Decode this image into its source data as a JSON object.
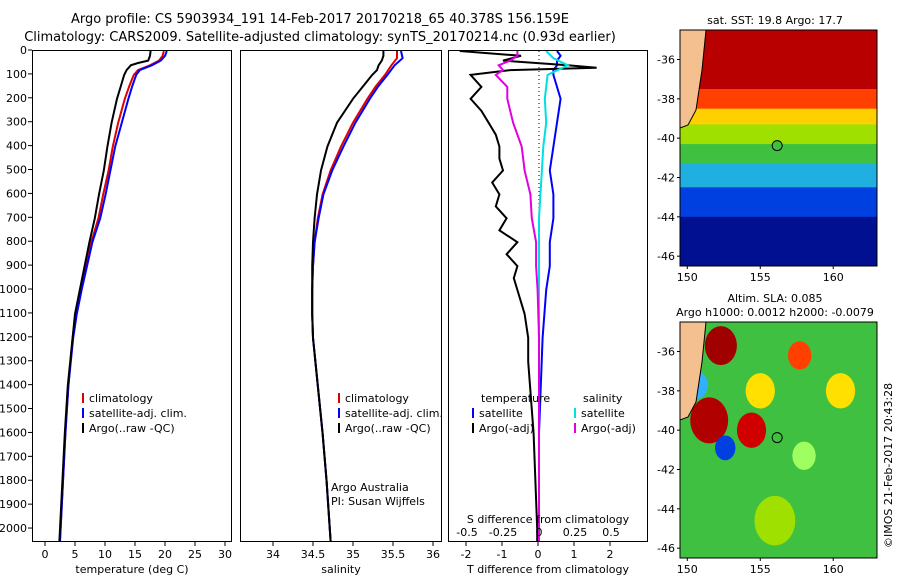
{
  "header": {
    "line1": "Argo profile: CS 5903934_191 14-Feb-2017 20170218_65 40.378S 156.159E",
    "line2": "Climatology: CARS2009. Satellite-adjusted climatology: synTS_20170214.nc (0.93d earlier)"
  },
  "map_top": {
    "title": "sat. SST: 19.8 Argo: 17.7"
  },
  "map_bottom": {
    "title1": "Altim. SLA: 0.085",
    "title2": "Argo h1000: 0.0012 h2000: -0.0079"
  },
  "credit": "©IMOS 21-Feb-2017 20:43:28",
  "colors": {
    "climatology": "#e00000",
    "satellite": "#0000ff",
    "argo": "#000000",
    "sal_satellite": "#00e0e0",
    "sal_argo": "#e000e0"
  },
  "chart_data": [
    {
      "type": "line",
      "xlabel": "temperature (deg C)",
      "ylabel": "",
      "xlim": [
        -2,
        31
      ],
      "ylim": [
        2050,
        0
      ],
      "xticks": [
        0,
        5,
        10,
        15,
        20,
        25,
        30
      ],
      "yticks": [
        0,
        100,
        200,
        300,
        400,
        500,
        600,
        700,
        800,
        900,
        1000,
        1100,
        1200,
        1300,
        1400,
        1500,
        1600,
        1700,
        1800,
        1900,
        2000
      ],
      "legend": [
        "climatology",
        "satellite-adj. clim.",
        "Argo(..raw -QC)"
      ],
      "legend_position": "bottom-right",
      "series": [
        {
          "name": "climatology",
          "color": "#e00000",
          "depth": [
            0,
            20,
            40,
            60,
            80,
            100,
            150,
            200,
            300,
            400,
            500,
            600,
            700,
            800,
            900,
            1000,
            1100,
            1200,
            1400,
            1600,
            1800,
            2000,
            2050
          ],
          "values": [
            19.8,
            19.6,
            19.0,
            17.5,
            15.5,
            14.8,
            14.0,
            13.3,
            12.2,
            11.3,
            10.6,
            9.7,
            8.9,
            7.7,
            6.8,
            6.0,
            5.2,
            4.6,
            3.9,
            3.4,
            3.0,
            2.6,
            2.5
          ]
        },
        {
          "name": "satellite-adj. clim.",
          "color": "#0000ff",
          "depth": [
            0,
            20,
            40,
            60,
            80,
            100,
            150,
            200,
            300,
            400,
            500,
            600,
            700,
            800,
            900,
            1000,
            1100,
            1200,
            1400,
            1600,
            1800,
            2000,
            2050
          ],
          "values": [
            20.3,
            20.0,
            19.3,
            17.8,
            15.8,
            15.2,
            14.5,
            13.9,
            12.8,
            11.7,
            10.9,
            10.1,
            9.2,
            7.9,
            7.0,
            6.1,
            5.3,
            4.7,
            3.9,
            3.4,
            3.0,
            2.6,
            2.5
          ]
        },
        {
          "name": "Argo(..raw -QC)",
          "color": "#000000",
          "depth": [
            0,
            20,
            40,
            50,
            60,
            80,
            100,
            150,
            200,
            300,
            400,
            500,
            600,
            700,
            800,
            900,
            1000,
            1100,
            1200,
            1400,
            1600,
            1800,
            2000,
            2050
          ],
          "values": [
            17.6,
            17.5,
            17.2,
            15.5,
            14.3,
            13.6,
            13.2,
            12.6,
            12.0,
            11.1,
            10.4,
            9.8,
            9.0,
            8.3,
            7.4,
            6.6,
            5.8,
            5.0,
            4.6,
            3.8,
            3.3,
            2.9,
            2.5,
            2.4
          ]
        }
      ]
    },
    {
      "type": "line",
      "xlabel": "salinity",
      "ylabel": "",
      "xlim": [
        33.6,
        36.1
      ],
      "ylim": [
        2050,
        0
      ],
      "xticks": [
        34,
        34.5,
        35,
        35.5,
        36
      ],
      "legend": [
        "climatology",
        "satellite-adj. clim.",
        "Argo(..raw -QC)"
      ],
      "legend_position": "bottom-right",
      "annotation": [
        "Argo Australia",
        "PI: Susan Wijffels"
      ],
      "series": [
        {
          "name": "climatology",
          "color": "#e00000",
          "depth": [
            0,
            30,
            60,
            100,
            150,
            200,
            300,
            400,
            500,
            600,
            700,
            800,
            900,
            1000,
            1100,
            1200,
            1400,
            1600,
            1800,
            2000,
            2050
          ],
          "values": [
            35.55,
            35.55,
            35.48,
            35.4,
            35.28,
            35.18,
            35.0,
            34.85,
            34.72,
            34.62,
            34.56,
            34.52,
            34.5,
            34.49,
            34.49,
            34.5,
            34.56,
            34.62,
            34.67,
            34.71,
            34.72
          ]
        },
        {
          "name": "satellite-adj. clim.",
          "color": "#0000ff",
          "depth": [
            0,
            30,
            60,
            100,
            150,
            200,
            300,
            400,
            500,
            600,
            700,
            800,
            900,
            1000,
            1100,
            1200,
            1400,
            1600,
            1800,
            2000,
            2050
          ],
          "values": [
            35.6,
            35.62,
            35.52,
            35.43,
            35.31,
            35.21,
            35.03,
            34.88,
            34.74,
            34.63,
            34.57,
            34.52,
            34.5,
            34.49,
            34.49,
            34.5,
            34.56,
            34.62,
            34.67,
            34.71,
            34.72
          ]
        },
        {
          "name": "Argo(..raw -QC)",
          "color": "#000000",
          "depth": [
            0,
            20,
            40,
            60,
            80,
            100,
            150,
            200,
            300,
            400,
            500,
            600,
            700,
            800,
            900,
            1000,
            1100,
            1200,
            1400,
            1600,
            1800,
            2000,
            2050
          ],
          "values": [
            35.38,
            35.38,
            35.36,
            35.32,
            35.3,
            35.24,
            35.12,
            35.0,
            34.8,
            34.68,
            34.6,
            34.55,
            34.52,
            34.5,
            34.49,
            34.49,
            34.49,
            34.5,
            34.56,
            34.62,
            34.67,
            34.71,
            34.72
          ]
        }
      ]
    },
    {
      "type": "line",
      "xlabel": "T difference from climatology",
      "xlabel2": "S difference from climatology",
      "xlim": [
        -2.5,
        3.0
      ],
      "ylim": [
        2050,
        0
      ],
      "xticks": [
        -2,
        -1,
        0,
        1,
        2
      ],
      "xticks_s": [
        -0.5,
        -0.25,
        0,
        0.25,
        0.5
      ],
      "legend_left": [
        "temperature",
        "satellite",
        "Argo(-adj)"
      ],
      "legend_right": [
        "salinity",
        "satellite",
        "Argo(-adj)"
      ],
      "series": [
        {
          "name": "temperature satellite",
          "color": "#0000ff",
          "depth": [
            0,
            20,
            40,
            60,
            80,
            100,
            150,
            200,
            300,
            400,
            500,
            600,
            700,
            800,
            900,
            1000,
            1100,
            1200,
            1400,
            1600,
            1800,
            2000,
            2050
          ],
          "values": [
            0.5,
            0.6,
            0.5,
            0.5,
            0.4,
            0.4,
            0.5,
            0.6,
            0.5,
            0.4,
            0.3,
            0.4,
            0.4,
            0.3,
            0.3,
            0.2,
            0.15,
            0.1,
            0.05,
            0.0,
            0.0,
            0.0,
            0.0
          ]
        },
        {
          "name": "temperature Argo(-adj)",
          "color": "#000000",
          "depth": [
            0,
            20,
            40,
            60,
            70,
            80,
            100,
            150,
            200,
            250,
            300,
            350,
            400,
            450,
            500,
            550,
            600,
            650,
            700,
            750,
            800,
            850,
            900,
            950,
            1000,
            1100,
            1200,
            1300,
            1400,
            1500,
            1600,
            1800,
            2000,
            2050
          ],
          "values": [
            -2.2,
            -0.5,
            -1.0,
            0.8,
            1.6,
            -0.8,
            -1.9,
            -1.6,
            -1.9,
            -1.6,
            -1.4,
            -1.2,
            -1.1,
            -1.1,
            -1.0,
            -1.3,
            -1.1,
            -1.2,
            -0.9,
            -1.1,
            -0.6,
            -0.9,
            -0.6,
            -0.7,
            -0.6,
            -0.4,
            -0.3,
            -0.3,
            -0.25,
            -0.2,
            -0.15,
            -0.1,
            -0.05,
            -0.05
          ]
        },
        {
          "name": "salinity satellite",
          "color": "#00e0e0",
          "depth": [
            0,
            30,
            60,
            100,
            150,
            200,
            300,
            400,
            500,
            600,
            700,
            800,
            900,
            1000,
            1200,
            1400,
            1600,
            1800,
            2000,
            2050
          ],
          "values": [
            0.05,
            0.1,
            0.2,
            0.06,
            0.05,
            0.04,
            0.05,
            0.03,
            0.02,
            0.01,
            0.0,
            0.0,
            0.0,
            0.0,
            0.0,
            0.0,
            0.0,
            0.0,
            0.0,
            0.0
          ]
        },
        {
          "name": "salinity Argo(-adj)",
          "color": "#e000e0",
          "depth": [
            0,
            20,
            40,
            60,
            80,
            100,
            150,
            200,
            250,
            300,
            400,
            500,
            600,
            700,
            800,
            900,
            1000,
            1200,
            1400,
            1600,
            1800,
            2000,
            2050
          ],
          "values": [
            -0.15,
            -0.15,
            -0.2,
            -0.28,
            -0.25,
            -0.3,
            -0.22,
            -0.22,
            -0.2,
            -0.18,
            -0.12,
            -0.1,
            -0.06,
            -0.05,
            -0.02,
            -0.02,
            -0.01,
            0.0,
            0.0,
            0.0,
            0.0,
            0.0,
            0.0
          ]
        }
      ]
    },
    {
      "type": "heatmap",
      "title": "sat. SST: 19.8 Argo: 17.7",
      "xlim": [
        149.5,
        163
      ],
      "ylim": [
        -46.5,
        -34.5
      ],
      "xticks": [
        150,
        155,
        160
      ],
      "yticks": [
        -36,
        -38,
        -40,
        -42,
        -44,
        -46
      ],
      "marker": {
        "lon": 156.159,
        "lat": -40.378
      },
      "bands": [
        {
          "lat_top": -34.5,
          "lat_bottom": -37.5,
          "color": "#b80000"
        },
        {
          "lat_top": -37.5,
          "lat_bottom": -38.5,
          "color": "#ff4000"
        },
        {
          "lat_top": -38.5,
          "lat_bottom": -39.3,
          "color": "#ffd000"
        },
        {
          "lat_top": -39.3,
          "lat_bottom": -40.3,
          "color": "#a0e000"
        },
        {
          "lat_top": -40.3,
          "lat_bottom": -41.3,
          "color": "#40c040"
        },
        {
          "lat_top": -41.3,
          "lat_bottom": -42.5,
          "color": "#20b0e0"
        },
        {
          "lat_top": -42.5,
          "lat_bottom": -44.0,
          "color": "#0040e0"
        },
        {
          "lat_top": -44.0,
          "lat_bottom": -46.5,
          "color": "#001090"
        }
      ]
    },
    {
      "type": "heatmap",
      "title": "Altim. SLA: 0.085",
      "xlim": [
        149.5,
        163
      ],
      "ylim": [
        -46.5,
        -34.5
      ],
      "xticks": [
        150,
        155,
        160
      ],
      "yticks": [
        -36,
        -38,
        -40,
        -42,
        -44,
        -46
      ],
      "marker": {
        "lon": 156.159,
        "lat": -40.378
      },
      "background": "#40c040",
      "features": [
        {
          "lon": 152.3,
          "lat": -35.7,
          "r": 1.1,
          "color": "#a00000"
        },
        {
          "lon": 157.7,
          "lat": -36.2,
          "r": 0.8,
          "color": "#ff4000"
        },
        {
          "lon": 150.6,
          "lat": -37.7,
          "r": 0.8,
          "color": "#30b0ff"
        },
        {
          "lon": 155.0,
          "lat": -38.0,
          "r": 1.0,
          "color": "#ffe000"
        },
        {
          "lon": 151.5,
          "lat": -39.5,
          "r": 1.3,
          "color": "#b00000"
        },
        {
          "lon": 154.4,
          "lat": -40.0,
          "r": 1.0,
          "color": "#d00000"
        },
        {
          "lon": 152.6,
          "lat": -40.9,
          "r": 0.7,
          "color": "#0040e0"
        },
        {
          "lon": 160.5,
          "lat": -38.0,
          "r": 1.0,
          "color": "#ffe000"
        },
        {
          "lon": 158.0,
          "lat": -41.3,
          "r": 0.8,
          "color": "#a0ff60"
        },
        {
          "lon": 156.0,
          "lat": -44.6,
          "r": 1.4,
          "color": "#a0e000"
        }
      ]
    }
  ]
}
